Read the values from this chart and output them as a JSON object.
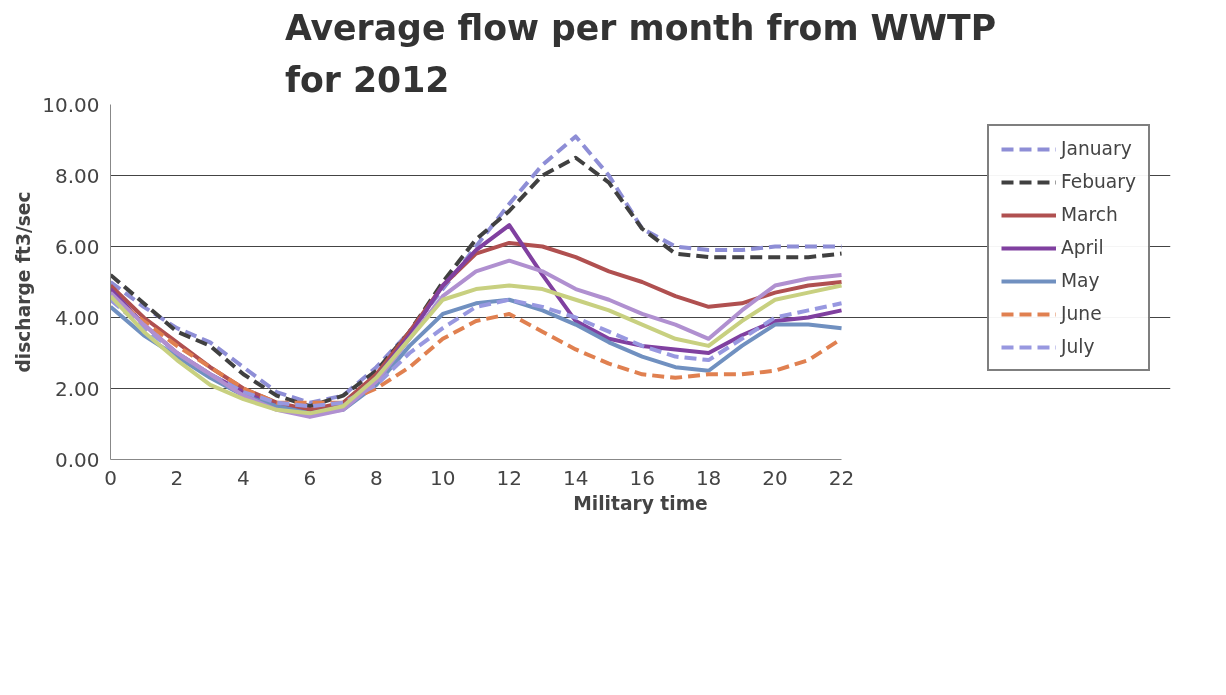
{
  "chart_data": {
    "type": "line",
    "title": "Average flow per month from WWTP\nfor 2012",
    "xlabel": "Military time",
    "ylabel": "discharge ft3/sec",
    "x": [
      0,
      1,
      2,
      3,
      4,
      5,
      6,
      7,
      8,
      9,
      10,
      11,
      12,
      13,
      14,
      15,
      16,
      17,
      18,
      19,
      20,
      21,
      22
    ],
    "xlim": [
      0,
      22
    ],
    "xticks": [
      0,
      2,
      4,
      6,
      8,
      10,
      12,
      14,
      16,
      18,
      20,
      22
    ],
    "ylim": [
      0,
      10
    ],
    "yticks": [
      {
        "value": 0,
        "label": "0.00"
      },
      {
        "value": 2,
        "label": "2.00"
      },
      {
        "value": 4,
        "label": "4.00"
      },
      {
        "value": 6,
        "label": "6.00"
      },
      {
        "value": 8,
        "label": "8.00"
      },
      {
        "value": 10,
        "label": "10.00"
      }
    ],
    "grid": "y",
    "legend": "right",
    "marker": "none",
    "series": [
      {
        "name": "January",
        "color": "#8e8ed6",
        "line_style": "dashed",
        "values": [
          5.0,
          4.3,
          3.7,
          3.3,
          2.6,
          1.9,
          1.6,
          1.8,
          2.6,
          3.6,
          4.8,
          6.0,
          7.2,
          8.3,
          9.1,
          8.0,
          6.5,
          6.0,
          5.9,
          5.9,
          6.0,
          6.0,
          6.0
        ]
      },
      {
        "name": "Febuary",
        "color": "#404040",
        "line_style": "dashed",
        "values": [
          5.2,
          4.4,
          3.6,
          3.2,
          2.4,
          1.8,
          1.5,
          1.8,
          2.5,
          3.6,
          5.0,
          6.2,
          7.0,
          8.0,
          8.5,
          7.8,
          6.5,
          5.8,
          5.7,
          5.7,
          5.7,
          5.7,
          5.8
        ]
      },
      {
        "name": "March",
        "color": "#b05050",
        "line_style": "solid",
        "values": [
          4.9,
          4.0,
          3.3,
          2.6,
          2.0,
          1.6,
          1.4,
          1.6,
          2.4,
          3.6,
          4.9,
          5.8,
          6.1,
          6.0,
          5.7,
          5.3,
          5.0,
          4.6,
          4.3,
          4.4,
          4.7,
          4.9,
          5.0
        ]
      },
      {
        "name": "April",
        "color": "#8040a0",
        "line_style": "solid",
        "values": [
          4.8,
          3.8,
          3.0,
          2.4,
          1.9,
          1.5,
          1.3,
          1.5,
          2.3,
          3.5,
          4.9,
          5.9,
          6.6,
          5.2,
          3.9,
          3.4,
          3.2,
          3.1,
          3.0,
          3.5,
          3.9,
          4.0,
          4.2
        ]
      },
      {
        "name": "May",
        "color": "#7090c0",
        "line_style": "solid",
        "values": [
          4.3,
          3.5,
          2.9,
          2.3,
          1.8,
          1.5,
          1.3,
          1.4,
          2.1,
          3.2,
          4.1,
          4.4,
          4.5,
          4.2,
          3.8,
          3.3,
          2.9,
          2.6,
          2.5,
          3.2,
          3.8,
          3.8,
          3.7
        ]
      },
      {
        "name": "June",
        "color": "#e08050",
        "line_style": "dashed",
        "values": [
          4.6,
          3.9,
          3.2,
          2.6,
          2.0,
          1.6,
          1.6,
          1.6,
          2.0,
          2.6,
          3.4,
          3.9,
          4.1,
          3.6,
          3.1,
          2.7,
          2.4,
          2.3,
          2.4,
          2.4,
          2.5,
          2.8,
          3.4
        ]
      },
      {
        "name": "July",
        "color": "#9898e0",
        "line_style": "dashed",
        "values": [
          4.5,
          3.7,
          3.0,
          2.4,
          1.9,
          1.6,
          1.5,
          1.6,
          2.1,
          3.0,
          3.7,
          4.3,
          4.5,
          4.3,
          4.0,
          3.6,
          3.2,
          2.9,
          2.8,
          3.4,
          4.0,
          4.2,
          4.4
        ]
      },
      {
        "color": "#b090d0",
        "line_style": "solid",
        "values": [
          4.7,
          3.8,
          3.0,
          2.4,
          1.8,
          1.4,
          1.2,
          1.4,
          2.2,
          3.4,
          4.6,
          5.3,
          5.6,
          5.3,
          4.8,
          4.5,
          4.1,
          3.8,
          3.4,
          4.2,
          4.9,
          5.1,
          5.2
        ]
      },
      {
        "color": "#c8d080",
        "line_style": "solid",
        "values": [
          4.6,
          3.6,
          2.8,
          2.1,
          1.7,
          1.4,
          1.3,
          1.5,
          2.3,
          3.4,
          4.5,
          4.8,
          4.9,
          4.8,
          4.5,
          4.2,
          3.8,
          3.4,
          3.2,
          3.9,
          4.5,
          4.7,
          4.9
        ]
      }
    ]
  }
}
